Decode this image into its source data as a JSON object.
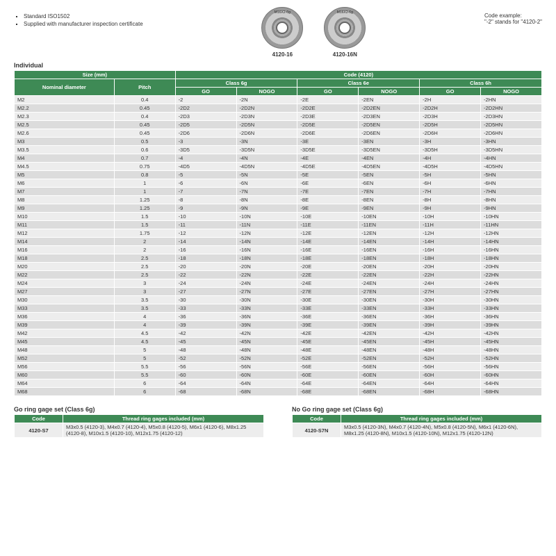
{
  "notes": {
    "line1": "Standard ISO1502",
    "line2": "Supplied with manufacturer inspection certificate"
  },
  "products": {
    "p1": {
      "label": "M16X2-6g",
      "caption": "4120-16"
    },
    "p2": {
      "label": "M16X2-6g",
      "caption": "4120-16N"
    }
  },
  "code_example": {
    "title": "Code example:",
    "text": "\"-2\" stands for \"4120-2\""
  },
  "section_individual": "Individual",
  "headers": {
    "size": "Size (mm)",
    "code": "Code (4120)",
    "nominal": "Nominal diameter",
    "pitch": "Pitch",
    "class6g": "Class 6g",
    "class6e": "Class 6e",
    "class6h": "Class 6h",
    "go": "GO",
    "nogo": "NOGO"
  },
  "rows": [
    {
      "nom": "M2",
      "pitch": "0.4",
      "g": "-2",
      "gn": "-2N",
      "e": "-2E",
      "en": "-2EN",
      "h": "-2H",
      "hn": "-2HN"
    },
    {
      "nom": "M2.2",
      "pitch": "0.45",
      "g": "-2D2",
      "gn": "-2D2N",
      "e": "-2D2E",
      "en": "-2D2EN",
      "h": "-2D2H",
      "hn": "-2D2HN"
    },
    {
      "nom": "M2.3",
      "pitch": "0.4",
      "g": "-2D3",
      "gn": "-2D3N",
      "e": "-2D3E",
      "en": "-2D3EN",
      "h": "-2D3H",
      "hn": "-2D3HN"
    },
    {
      "nom": "M2.5",
      "pitch": "0.45",
      "g": "-2D5",
      "gn": "-2D5N",
      "e": "-2D5E",
      "en": "-2D5EN",
      "h": "-2D5H",
      "hn": "-2D5HN"
    },
    {
      "nom": "M2.6",
      "pitch": "0.45",
      "g": "-2D6",
      "gn": "-2D6N",
      "e": "-2D6E",
      "en": "-2D6EN",
      "h": "-2D6H",
      "hn": "-2D6HN"
    },
    {
      "nom": "M3",
      "pitch": "0.5",
      "g": "-3",
      "gn": "-3N",
      "e": "-3E",
      "en": "-3EN",
      "h": "-3H",
      "hn": "-3HN"
    },
    {
      "nom": "M3.5",
      "pitch": "0.6",
      "g": "-3D5",
      "gn": "-3D5N",
      "e": "-3D5E",
      "en": "-3D5EN",
      "h": "-3D5H",
      "hn": "-3D5HN"
    },
    {
      "nom": "M4",
      "pitch": "0.7",
      "g": "-4",
      "gn": "-4N",
      "e": "-4E",
      "en": "-4EN",
      "h": "-4H",
      "hn": "-4HN"
    },
    {
      "nom": "M4.5",
      "pitch": "0.75",
      "g": "-4D5",
      "gn": "-4D5N",
      "e": "-4D5E",
      "en": "-4D5EN",
      "h": "-4D5H",
      "hn": "-4D5HN"
    },
    {
      "nom": "M5",
      "pitch": "0.8",
      "g": "-5",
      "gn": "-5N",
      "e": "-5E",
      "en": "-5EN",
      "h": "-5H",
      "hn": "-5HN"
    },
    {
      "nom": "M6",
      "pitch": "1",
      "g": "-6",
      "gn": "-6N",
      "e": "-6E",
      "en": "-6EN",
      "h": "-6H",
      "hn": "-6HN"
    },
    {
      "nom": "M7",
      "pitch": "1",
      "g": "-7",
      "gn": "-7N",
      "e": "-7E",
      "en": "-7EN",
      "h": "-7H",
      "hn": "-7HN"
    },
    {
      "nom": "M8",
      "pitch": "1.25",
      "g": "-8",
      "gn": "-8N",
      "e": "-8E",
      "en": "-8EN",
      "h": "-8H",
      "hn": "-8HN"
    },
    {
      "nom": "M9",
      "pitch": "1.25",
      "g": "-9",
      "gn": "-9N",
      "e": "-9E",
      "en": "-9EN",
      "h": "-9H",
      "hn": "-9HN"
    },
    {
      "nom": "M10",
      "pitch": "1.5",
      "g": "-10",
      "gn": "-10N",
      "e": "-10E",
      "en": "-10EN",
      "h": "-10H",
      "hn": "-10HN"
    },
    {
      "nom": "M11",
      "pitch": "1.5",
      "g": "-11",
      "gn": "-11N",
      "e": "-11E",
      "en": "-11EN",
      "h": "-11H",
      "hn": "-11HN"
    },
    {
      "nom": "M12",
      "pitch": "1.75",
      "g": "-12",
      "gn": "-12N",
      "e": "-12E",
      "en": "-12EN",
      "h": "-12H",
      "hn": "-12HN"
    },
    {
      "nom": "M14",
      "pitch": "2",
      "g": "-14",
      "gn": "-14N",
      "e": "-14E",
      "en": "-14EN",
      "h": "-14H",
      "hn": "-14HN"
    },
    {
      "nom": "M16",
      "pitch": "2",
      "g": "-16",
      "gn": "-16N",
      "e": "-16E",
      "en": "-16EN",
      "h": "-16H",
      "hn": "-16HN"
    },
    {
      "nom": "M18",
      "pitch": "2.5",
      "g": "-18",
      "gn": "-18N",
      "e": "-18E",
      "en": "-18EN",
      "h": "-18H",
      "hn": "-18HN"
    },
    {
      "nom": "M20",
      "pitch": "2.5",
      "g": "-20",
      "gn": "-20N",
      "e": "-20E",
      "en": "-20EN",
      "h": "-20H",
      "hn": "-20HN"
    },
    {
      "nom": "M22",
      "pitch": "2.5",
      "g": "-22",
      "gn": "-22N",
      "e": "-22E",
      "en": "-22EN",
      "h": "-22H",
      "hn": "-22HN"
    },
    {
      "nom": "M24",
      "pitch": "3",
      "g": "-24",
      "gn": "-24N",
      "e": "-24E",
      "en": "-24EN",
      "h": "-24H",
      "hn": "-24HN"
    },
    {
      "nom": "M27",
      "pitch": "3",
      "g": "-27",
      "gn": "-27N",
      "e": "-27E",
      "en": "-27EN",
      "h": "-27H",
      "hn": "-27HN"
    },
    {
      "nom": "M30",
      "pitch": "3.5",
      "g": "-30",
      "gn": "-30N",
      "e": "-30E",
      "en": "-30EN",
      "h": "-30H",
      "hn": "-30HN"
    },
    {
      "nom": "M33",
      "pitch": "3.5",
      "g": "-33",
      "gn": "-33N",
      "e": "-33E",
      "en": "-33EN",
      "h": "-33H",
      "hn": "-33HN"
    },
    {
      "nom": "M36",
      "pitch": "4",
      "g": "-36",
      "gn": "-36N",
      "e": "-36E",
      "en": "-36EN",
      "h": "-36H",
      "hn": "-36HN"
    },
    {
      "nom": "M39",
      "pitch": "4",
      "g": "-39",
      "gn": "-39N",
      "e": "-39E",
      "en": "-39EN",
      "h": "-39H",
      "hn": "-39HN"
    },
    {
      "nom": "M42",
      "pitch": "4.5",
      "g": "-42",
      "gn": "-42N",
      "e": "-42E",
      "en": "-42EN",
      "h": "-42H",
      "hn": "-42HN"
    },
    {
      "nom": "M45",
      "pitch": "4.5",
      "g": "-45",
      "gn": "-45N",
      "e": "-45E",
      "en": "-45EN",
      "h": "-45H",
      "hn": "-45HN"
    },
    {
      "nom": "M48",
      "pitch": "5",
      "g": "-48",
      "gn": "-48N",
      "e": "-48E",
      "en": "-48EN",
      "h": "-48H",
      "hn": "-48HN"
    },
    {
      "nom": "M52",
      "pitch": "5",
      "g": "-52",
      "gn": "-52N",
      "e": "-52E",
      "en": "-52EN",
      "h": "-52H",
      "hn": "-52HN"
    },
    {
      "nom": "M56",
      "pitch": "5.5",
      "g": "-56",
      "gn": "-56N",
      "e": "-56E",
      "en": "-56EN",
      "h": "-56H",
      "hn": "-56HN"
    },
    {
      "nom": "M60",
      "pitch": "5.5",
      "g": "-60",
      "gn": "-60N",
      "e": "-60E",
      "en": "-60EN",
      "h": "-60H",
      "hn": "-60HN"
    },
    {
      "nom": "M64",
      "pitch": "6",
      "g": "-64",
      "gn": "-64N",
      "e": "-64E",
      "en": "-64EN",
      "h": "-64H",
      "hn": "-64HN"
    },
    {
      "nom": "M68",
      "pitch": "6",
      "g": "-68",
      "gn": "-68N",
      "e": "-68E",
      "en": "-68EN",
      "h": "-68H",
      "hn": "-68HN"
    }
  ],
  "go_set": {
    "title": "Go ring gage set (Class 6g)",
    "hdr_code": "Code",
    "hdr_items": "Thread ring gages included (mm)",
    "code": "4120-S7",
    "items": "M3x0.5 (4120-3), M4x0.7 (4120-4), M5x0.8 (4120-5), M6x1 (4120-6), M8x1.25 (4120-8), M10x1.5 (4120-10), M12x1.75 (4120-12)"
  },
  "nogo_set": {
    "title": "No Go ring gage set (Class 6g)",
    "hdr_code": "Code",
    "hdr_items": "Thread ring gages included (mm)",
    "code": "4120-S7N",
    "items": "M3x0.5 (4120-3N), M4x0.7 (4120-4N), M5x0.8 (4120-5N), M6x1 (4120-6N), M8x1.25 (4120-8N), M10x1.5 (4120-10N), M12x1.75 (4120-12N)"
  },
  "colors": {
    "header_bg": "#3e8a55",
    "row_odd": "#ededed",
    "row_even": "#dcdcdc"
  }
}
